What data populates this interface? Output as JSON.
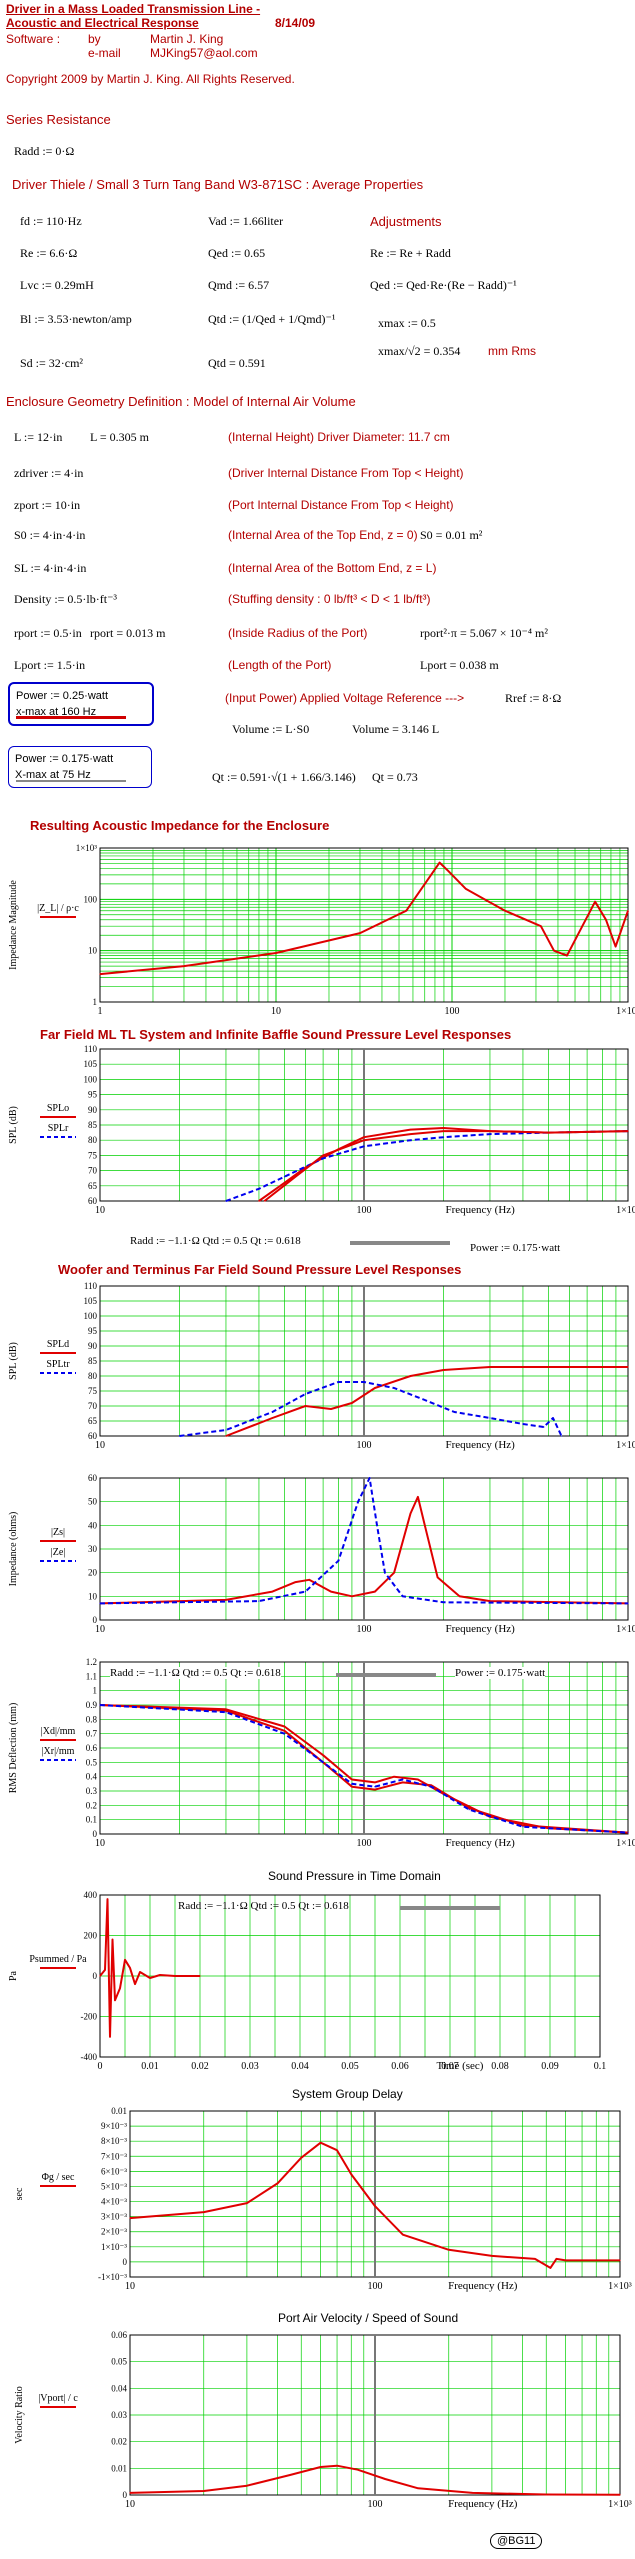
{
  "header": {
    "title_line1": "Driver in a Mass Loaded Transmission Line -",
    "title_line2": "Acoustic and Electrical Response",
    "date": "8/14/09",
    "software_label": "Software :",
    "by_label": "by",
    "author": "Martin J. King",
    "email_label": "e-mail",
    "email": "MJKing57@aol.com",
    "copyright": "Copyright 2009 by Martin J. King. All Rights Reserved."
  },
  "series_resistance": {
    "heading": "Series Resistance",
    "rdd": "Radd := 0·Ω"
  },
  "driver": {
    "heading": "Driver Thiele / Small  3 Turn Tang Band W3-871SC : Average Properties",
    "params": [
      "fd := 110·Hz",
      "Re := 6.6·Ω",
      "Lvc := 0.29mH",
      "Bl := 3.53·newton/amp",
      "Sd := 32·cm²"
    ],
    "params2": [
      "Vad := 1.66liter",
      "Qed := 0.65",
      "Qmd := 6.57",
      "Qtd := (1/Qed + 1/Qmd)⁻¹",
      "Qtd = 0.591"
    ],
    "adjust_heading": "Adjustments",
    "adjust": [
      "Re := Re + Radd",
      "Qed := Qed·Re·(Re − Radd)⁻¹",
      "xmax := 0.5",
      "xmax/√2 = 0.354",
      "mm Rms"
    ]
  },
  "enclosure": {
    "heading": "Enclosure Geometry Definition : Model of Internal Air Volume",
    "rows": [
      {
        "l": "L := 12·in",
        "m": "L = 0.305 m",
        "n": "(Internal Height)    Driver Diameter: 11.7 cm",
        "r": ""
      },
      {
        "l": "zdriver := 4·in",
        "m": "",
        "n": "(Driver Internal Distance From Top < Height)",
        "r": ""
      },
      {
        "l": "zport := 10·in",
        "m": "",
        "n": "(Port Internal Distance From Top < Height)",
        "r": ""
      },
      {
        "l": "S0 := 4·in·4·in",
        "m": "",
        "n": "(Internal Area of the Top End, z = 0)",
        "r": "S0 = 0.01 m²"
      },
      {
        "l": "SL := 4·in·4·in",
        "m": "",
        "n": "(Internal Area of the Bottom End, z = L)",
        "r": ""
      },
      {
        "l": "Density := 0.5·lb·ft⁻³",
        "m": "",
        "n": "(Stuffing density : 0 lb/ft³ < D < 1 lb/ft³)",
        "r": ""
      },
      {
        "l": "rport := 0.5·in",
        "m": "rport = 0.013 m",
        "n": "(Inside Radius of the Port)",
        "r": "rport²·π = 5.067 × 10⁻⁴ m²"
      },
      {
        "l": "Lport := 1.5·in",
        "m": "",
        "n": "(Length of the Port)",
        "r": "Lport = 0.038 m"
      }
    ],
    "input_power": "(Input Power)   Applied Voltage Reference --->",
    "rref": "Rref := 8·Ω",
    "power_box1_line1": "Power := 0.25·watt",
    "power_box1_line2": "x-max at 160 Hz",
    "power_box2_line1": "Power := 0.175·watt",
    "power_box2_line2": "X-max at 75 Hz",
    "volume": "Volume := L·S0",
    "volume_val": "Volume = 3.146 L",
    "qt": "Qt := 0.591·√(1 + 1.66/3.146)",
    "qt_val": "Qt = 0.73"
  },
  "plot_titles": {
    "p1": "Resulting Acoustic Impedance for the Enclosure",
    "p2": "Far Field ML TL System and Infinite Baffle Sound Pressure Level Responses",
    "p3": "Woofer and Terminus Far Field Sound Pressure Level Responses",
    "p6": "Sound Pressure in Time Domain",
    "p7": "System Group Delay",
    "p8": "Port Air Velocity / Speed of Sound"
  },
  "annotations": {
    "p2_params": "Radd := −1.1·Ω    Qtd := 0.5    Qt := 0.618",
    "p2_power": "Power := 0.175·watt",
    "p5_params": "Radd := −1.1·Ω    Qtd := 0.5    Qt := 0.618",
    "p5_power": "Power := 0.175·watt",
    "p6_params": "Radd := −1.1·Ω    Qtd := 0.5    Qt := 0.618"
  },
  "footer": {
    "badge": "@BG11"
  },
  "chart_data": [
    {
      "type": "line",
      "title": "Resulting Acoustic Impedance for the Enclosure",
      "xlabel": "",
      "ylabel": "Impedance Magnitude",
      "legend": [
        "|Z_L| / ρ·c"
      ],
      "xscale": "log",
      "yscale": "log",
      "xlim": [
        1,
        1000
      ],
      "ylim": [
        1,
        1000
      ],
      "x_ticks": [
        "1",
        "10",
        "100",
        "1×10³"
      ],
      "y_ticks": [
        "1",
        "10",
        "100",
        "1×10³"
      ],
      "series": [
        {
          "name": "|Z_L|/ρc",
          "color": "#e00000",
          "x": [
            1,
            3,
            10,
            30,
            55,
            75,
            85,
            95,
            120,
            200,
            320,
            380,
            450,
            550,
            650,
            750,
            850,
            1000
          ],
          "y": [
            3.5,
            5,
            9,
            22,
            60,
            280,
            520,
            360,
            160,
            60,
            30,
            10,
            8,
            30,
            90,
            40,
            12,
            60
          ]
        }
      ]
    },
    {
      "type": "line",
      "title": "Far Field ML TL System and Infinite Baffle Sound Pressure Level Responses",
      "xlabel": "Frequency (Hz)",
      "ylabel": "SPL (dB)",
      "legend": [
        "SPLo",
        "SPLr"
      ],
      "xscale": "log",
      "xlim": [
        10,
        1000
      ],
      "ylim": [
        60,
        110
      ],
      "x_ticks": [
        "10",
        "100",
        "1×10³"
      ],
      "y_ticks": [
        "60",
        "65",
        "70",
        "75",
        "80",
        "85",
        "90",
        "95",
        "100",
        "105",
        "110"
      ],
      "series": [
        {
          "name": "SPLo",
          "color": "#e00000",
          "dash": false,
          "x": [
            40,
            50,
            60,
            80,
            100,
            150,
            200,
            300,
            500,
            1000
          ],
          "y": [
            60,
            66,
            71,
            77,
            81,
            83.5,
            84,
            83,
            82.5,
            83
          ]
        },
        {
          "name": "SPLr",
          "color": "#0000ee",
          "dash": true,
          "x": [
            30,
            40,
            50,
            70,
            100,
            150,
            200,
            300,
            500,
            1000
          ],
          "y": [
            60,
            64,
            68,
            74,
            78,
            80,
            81,
            82,
            82.5,
            83
          ]
        },
        {
          "name": "SPLo2",
          "color": "#e00000",
          "dash": false,
          "x": [
            42,
            55,
            70,
            100,
            150,
            200,
            300,
            500,
            1000
          ],
          "y": [
            60,
            68,
            75,
            80,
            82,
            83,
            83,
            82.5,
            83
          ]
        }
      ]
    },
    {
      "type": "line",
      "title": "Woofer and Terminus Far Field Sound Pressure Level Responses",
      "xlabel": "Frequency (Hz)",
      "ylabel": "SPL (dB)",
      "legend": [
        "SPLd",
        "SPLtr"
      ],
      "xscale": "log",
      "xlim": [
        10,
        1000
      ],
      "ylim": [
        60,
        110
      ],
      "x_ticks": [
        "10",
        "100",
        "1×10³"
      ],
      "y_ticks": [
        "60",
        "65",
        "70",
        "75",
        "80",
        "85",
        "90",
        "95",
        "100",
        "105",
        "110"
      ],
      "series": [
        {
          "name": "SPLd",
          "color": "#e00000",
          "dash": false,
          "x": [
            30,
            45,
            60,
            75,
            90,
            110,
            150,
            200,
            300,
            500,
            1000
          ],
          "y": [
            60,
            66,
            70,
            69,
            71,
            76,
            80,
            82,
            83,
            83,
            83
          ]
        },
        {
          "name": "SPLtr",
          "color": "#0000ee",
          "dash": true,
          "x": [
            20,
            30,
            45,
            60,
            80,
            100,
            130,
            170,
            220,
            300,
            400,
            480,
            520,
            560
          ],
          "y": [
            60,
            62,
            68,
            74,
            78,
            78,
            76,
            72,
            68,
            66,
            64,
            63,
            66,
            58
          ]
        }
      ]
    },
    {
      "type": "line",
      "title": "",
      "xlabel": "Frequency (Hz)",
      "ylabel": "Impedance (ohms)",
      "legend": [
        "|Zs|",
        "|Ze|"
      ],
      "xscale": "log",
      "xlim": [
        10,
        1000
      ],
      "ylim": [
        0,
        60
      ],
      "x_ticks": [
        "10",
        "100",
        "1×10³"
      ],
      "y_ticks": [
        "0",
        "10",
        "20",
        "30",
        "40",
        "50",
        "60"
      ],
      "series": [
        {
          "name": "|Zs|",
          "color": "#e00000",
          "dash": false,
          "x": [
            10,
            30,
            45,
            55,
            62,
            75,
            90,
            110,
            130,
            150,
            160,
            170,
            190,
            230,
            300,
            1000
          ],
          "y": [
            7,
            8.5,
            12,
            16,
            17,
            12,
            10,
            12,
            20,
            45,
            52,
            40,
            18,
            10,
            8,
            7
          ]
        },
        {
          "name": "|Ze|",
          "color": "#0000ee",
          "dash": true,
          "x": [
            10,
            40,
            60,
            80,
            95,
            105,
            112,
            120,
            140,
            200,
            1000
          ],
          "y": [
            7,
            8,
            12,
            25,
            50,
            62,
            40,
            20,
            10,
            7.5,
            7
          ]
        }
      ]
    },
    {
      "type": "line",
      "title": "",
      "xlabel": "Frequency (Hz)",
      "ylabel": "RMS Deflection (mm)",
      "legend": [
        "|Xd|/mm",
        "|Xr|/mm"
      ],
      "xscale": "log",
      "xlim": [
        10,
        1000
      ],
      "ylim": [
        0,
        1.2
      ],
      "x_ticks": [
        "10",
        "100",
        "1×10³"
      ],
      "y_ticks": [
        "0",
        "0.1",
        "0.2",
        "0.3",
        "0.4",
        "0.5",
        "0.6",
        "0.7",
        "0.8",
        "0.9",
        "1",
        "1.1",
        "1.2"
      ],
      "series": [
        {
          "name": "|Xd|",
          "color": "#e00000",
          "dash": false,
          "x": [
            10,
            30,
            50,
            70,
            90,
            110,
            130,
            160,
            200,
            300,
            500,
            1000
          ],
          "y": [
            0.9,
            0.87,
            0.75,
            0.55,
            0.38,
            0.36,
            0.4,
            0.38,
            0.28,
            0.12,
            0.04,
            0.01
          ]
        },
        {
          "name": "|Xd| alt",
          "color": "#e00000",
          "dash": false,
          "x": [
            10,
            30,
            50,
            70,
            90,
            110,
            140,
            180,
            250,
            400,
            1000
          ],
          "y": [
            0.9,
            0.86,
            0.72,
            0.5,
            0.33,
            0.31,
            0.36,
            0.34,
            0.18,
            0.06,
            0.01
          ]
        },
        {
          "name": "|Xr|",
          "color": "#0000ee",
          "dash": true,
          "x": [
            10,
            30,
            50,
            70,
            90,
            110,
            140,
            180,
            250,
            400,
            1000
          ],
          "y": [
            0.9,
            0.85,
            0.7,
            0.5,
            0.35,
            0.33,
            0.38,
            0.33,
            0.17,
            0.05,
            0.01
          ]
        }
      ]
    },
    {
      "type": "line",
      "title": "Sound Pressure in Time Domain",
      "xlabel": "Time (sec)",
      "ylabel": "Pa",
      "legend": [
        "Psummed / Pa"
      ],
      "xlim": [
        0,
        0.1
      ],
      "ylim": [
        -400,
        400
      ],
      "x_ticks": [
        "0",
        "0.01",
        "0.02",
        "0.03",
        "0.04",
        "0.05",
        "0.06",
        "0.07",
        "0.08",
        "0.09",
        "0.1"
      ],
      "y_ticks": [
        "-400",
        "-200",
        "0",
        "200",
        "400"
      ],
      "series": [
        {
          "name": "Psummed",
          "color": "#e00000",
          "x": [
            0,
            0.001,
            0.0015,
            0.002,
            0.0025,
            0.003,
            0.004,
            0.005,
            0.006,
            0.007,
            0.008,
            0.01,
            0.012,
            0.015,
            0.02
          ],
          "y": [
            0,
            30,
            380,
            -300,
            180,
            -120,
            -60,
            80,
            40,
            -40,
            20,
            -10,
            5,
            0,
            0
          ]
        }
      ]
    },
    {
      "type": "line",
      "title": "System Group Delay",
      "xlabel": "Frequency (Hz)",
      "ylabel": "sec",
      "legend": [
        "Φg / sec"
      ],
      "xscale": "log",
      "xlim": [
        10,
        1000
      ],
      "ylim": [
        -0.001,
        0.01
      ],
      "x_ticks": [
        "10",
        "100",
        "1×10³"
      ],
      "y_ticks": [
        "-1×10⁻³",
        "0",
        "1×10⁻³",
        "2×10⁻³",
        "3×10⁻³",
        "4×10⁻³",
        "5×10⁻³",
        "6×10⁻³",
        "7×10⁻³",
        "8×10⁻³",
        "9×10⁻³",
        "0.01"
      ],
      "series": [
        {
          "name": "Φg",
          "color": "#e00000",
          "x": [
            10,
            20,
            30,
            40,
            50,
            60,
            70,
            80,
            100,
            130,
            200,
            300,
            450,
            520,
            550,
            600,
            1000
          ],
          "y": [
            0.0029,
            0.0033,
            0.0039,
            0.0052,
            0.0069,
            0.0079,
            0.0074,
            0.0058,
            0.0037,
            0.0018,
            0.0008,
            0.0004,
            0.0002,
            -0.0004,
            0.0002,
            0.0001,
            0.0001
          ]
        }
      ]
    },
    {
      "type": "line",
      "title": "Port Air Velocity / Speed of Sound",
      "xlabel": "Frequency (Hz)",
      "ylabel": "Velocity Ratio",
      "legend": [
        "|Vport| / c"
      ],
      "xscale": "log",
      "xlim": [
        10,
        1000
      ],
      "ylim": [
        0,
        0.06
      ],
      "x_ticks": [
        "10",
        "100",
        "1×10³"
      ],
      "y_ticks": [
        "0",
        "0.01",
        "0.02",
        "0.03",
        "0.04",
        "0.05",
        "0.06"
      ],
      "series": [
        {
          "name": "|Vport|/c",
          "color": "#e00000",
          "x": [
            10,
            20,
            30,
            45,
            60,
            70,
            85,
            110,
            150,
            250,
            500,
            1000
          ],
          "y": [
            0.0008,
            0.0015,
            0.0035,
            0.0075,
            0.0105,
            0.011,
            0.0095,
            0.006,
            0.0025,
            0.0008,
            0.0002,
            0.0001
          ]
        }
      ]
    }
  ]
}
